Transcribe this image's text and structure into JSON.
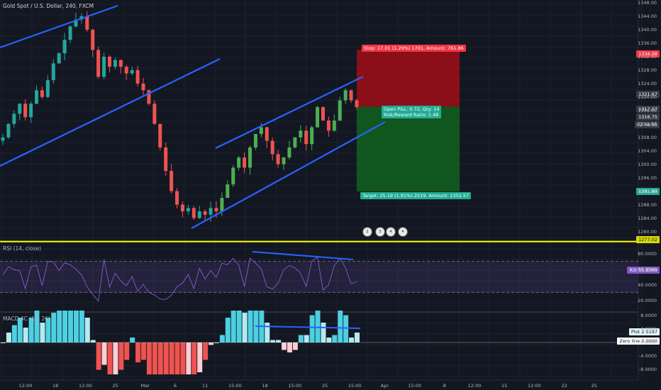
{
  "header": {
    "title": "Gold Spot / U.S. Dollar, 240, FXCM"
  },
  "rsi_pane": {
    "title": "RSI (14, close)",
    "value_label": "RSI",
    "value": "55.8369"
  },
  "macd_pane": {
    "title": "MACD 4C (12, 26)",
    "plot_label": "Plot",
    "plot_value": "2.5197",
    "zero_label": "Zero line",
    "zero_value": "0.0000"
  },
  "position": {
    "stop_text": "Stop: 17.01 (1.29%) 1701, Amount: 761.86",
    "pnl_text": "Open P&L: 0.72, Qty: 14",
    "rr_text": "Risk/Reward Ratio: 1.48",
    "target_text": "Target: 25.19 (1.91%) 2519, Amount: 1352.57",
    "stop_price": 1334.08,
    "entry_price": 1317.07,
    "target_price": 1291.89
  },
  "price_tags": [
    {
      "text": "1334.08",
      "color": "#f23645"
    },
    {
      "text": "1321.67",
      "color": "#363a45"
    },
    {
      "text": "1317.07",
      "color": "#363a45"
    },
    {
      "text": "1316.75",
      "color": "#363a45"
    },
    {
      "text": "02:46:55",
      "color": "#363a45"
    },
    {
      "text": "1291.89",
      "color": "#22ab94"
    },
    {
      "text": "1277.02",
      "color": "#d8d80a"
    }
  ],
  "event_flags": [
    "2",
    "3",
    "4",
    "4"
  ],
  "colors": {
    "up": "#26a69a",
    "up_bright": "#4caf50",
    "down": "#ef5350",
    "trend": "#2962ff",
    "rsi": "#7e57c2",
    "hline": "#ffff00",
    "stop_zone": "#a10e16",
    "target_zone": "#0f5e1f"
  },
  "chart_data": {
    "type": "candlestick",
    "y_axis": {
      "min": 1278,
      "max": 1348,
      "ticks": [
        1348,
        1344,
        1340,
        1336,
        1332,
        1328,
        1324,
        1320,
        1316,
        1312,
        1308,
        1304,
        1300,
        1296,
        1292,
        1288,
        1284,
        1280
      ]
    },
    "x_ticks": [
      "12:00",
      "18",
      "12:00",
      "25",
      "Mar",
      "6",
      "11",
      "15:00",
      "18",
      "15:00",
      "25",
      "15:00",
      "Apr",
      "15:00",
      "8",
      "12:00",
      "15",
      "12:00",
      "22",
      "25"
    ],
    "close_path": [
      1308,
      1312,
      1315,
      1318,
      1314,
      1318,
      1322,
      1320,
      1325,
      1330,
      1333,
      1337,
      1341,
      1343,
      1344,
      1340,
      1334,
      1326,
      1332,
      1329,
      1331,
      1329,
      1327,
      1328,
      1324,
      1322,
      1318,
      1312,
      1305,
      1298,
      1292,
      1288,
      1286,
      1287,
      1284,
      1286,
      1285,
      1287,
      1286,
      1290,
      1294,
      1299,
      1302,
      1299,
      1305,
      1309,
      1311,
      1307,
      1303,
      1300,
      1302,
      1305,
      1308,
      1310,
      1306,
      1311,
      1317,
      1313,
      1310,
      1313,
      1319,
      1322,
      1319,
      1317
    ],
    "horizontal_level": 1277.02,
    "rsi": {
      "upper": 70,
      "lower": 30,
      "ticks": [
        80,
        60,
        40,
        20
      ]
    },
    "macd": {
      "ticks": [
        8,
        4,
        0,
        -4,
        -8
      ]
    }
  }
}
